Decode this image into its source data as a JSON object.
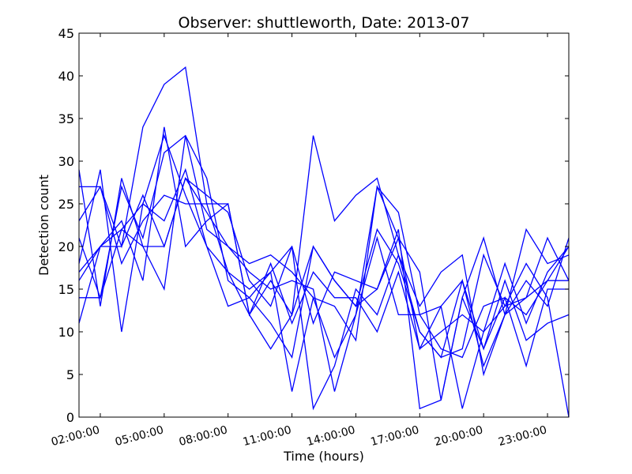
{
  "chart_data": {
    "type": "line",
    "title": "Observer: shuttleworth, Date: 2013-07",
    "xlabel": "Time (hours)",
    "ylabel": "Detection count",
    "xlim": [
      1.0,
      24.0
    ],
    "ylim": [
      0,
      45
    ],
    "grid": false,
    "legend": "none",
    "line_color": "#0000ff",
    "xticks": [
      {
        "value": 2,
        "label": "02:00:00"
      },
      {
        "value": 5,
        "label": "05:00:00"
      },
      {
        "value": 8,
        "label": "08:00:00"
      },
      {
        "value": 11,
        "label": "11:00:00"
      },
      {
        "value": 14,
        "label": "14:00:00"
      },
      {
        "value": 17,
        "label": "17:00:00"
      },
      {
        "value": 20,
        "label": "20:00:00"
      },
      {
        "value": 23,
        "label": "23:00:00"
      }
    ],
    "yticks": [
      0,
      5,
      10,
      15,
      20,
      25,
      30,
      35,
      40,
      45
    ],
    "x": [
      1,
      2,
      3,
      4,
      5,
      6,
      7,
      8,
      9,
      10,
      11,
      12,
      13,
      14,
      15,
      16,
      17,
      18,
      19,
      20,
      21,
      22,
      23,
      24
    ],
    "series": [
      {
        "values": [
          29,
          13,
          28,
          20,
          15,
          33,
          22,
          20,
          18,
          19,
          17,
          14,
          13,
          9,
          27,
          24,
          12,
          13,
          1,
          10,
          18,
          11,
          17,
          20
        ]
      },
      {
        "values": [
          16,
          20,
          22,
          25,
          33,
          26,
          20,
          17,
          12,
          8,
          12,
          33,
          23,
          26,
          28,
          19,
          13,
          17,
          19,
          5,
          12,
          22,
          18,
          19
        ]
      },
      {
        "values": [
          18,
          29,
          10,
          25,
          23,
          29,
          20,
          13,
          14,
          11,
          7,
          20,
          16,
          13,
          22,
          18,
          10,
          7,
          16,
          6,
          12,
          16,
          13,
          21
        ]
      },
      {
        "values": [
          23,
          27,
          20,
          34,
          39,
          41,
          25,
          17,
          15,
          17,
          3,
          14,
          7,
          12,
          27,
          21,
          8,
          13,
          16,
          8,
          16,
          9,
          11,
          12
        ]
      },
      {
        "values": [
          11,
          20,
          23,
          16,
          34,
          20,
          23,
          25,
          12,
          16,
          12,
          20,
          16,
          13,
          15,
          22,
          1,
          2,
          14,
          8,
          14,
          6,
          15,
          15
        ]
      },
      {
        "values": [
          21,
          14,
          27,
          21,
          31,
          33,
          28,
          16,
          14,
          17,
          20,
          11,
          17,
          16,
          15,
          21,
          17,
          2,
          14,
          21,
          12,
          14,
          21,
          16
        ]
      },
      {
        "values": [
          27,
          27,
          18,
          23,
          26,
          25,
          25,
          25,
          12,
          18,
          11,
          17,
          14,
          14,
          10,
          17,
          8,
          10,
          12,
          10,
          13,
          18,
          14,
          0
        ]
      },
      {
        "values": [
          14,
          14,
          22,
          20,
          20,
          28,
          24,
          20,
          17,
          15,
          16,
          15,
          3,
          12,
          21,
          12,
          12,
          8,
          7,
          13,
          14,
          12,
          16,
          20
        ]
      },
      {
        "values": [
          17,
          20,
          20,
          26,
          20,
          28,
          26,
          24,
          16,
          13,
          20,
          1,
          6,
          15,
          12,
          19,
          10,
          7,
          8,
          19,
          13,
          14,
          16,
          16
        ]
      }
    ]
  }
}
